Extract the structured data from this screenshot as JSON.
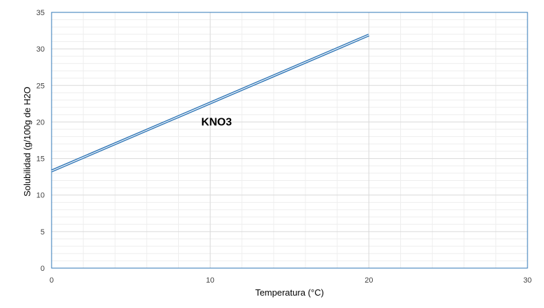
{
  "chart_data": {
    "type": "line",
    "title": "",
    "xlabel": "Temperatura (°C)",
    "ylabel": "Solubilidad (g/100g de H2O",
    "xlim": [
      0,
      30
    ],
    "ylim": [
      0,
      35
    ],
    "xticks": [
      0,
      10,
      20,
      30
    ],
    "yticks": [
      0,
      5,
      10,
      15,
      20,
      25,
      30,
      35
    ],
    "grid": true,
    "series": [
      {
        "x": [
          0,
          20
        ],
        "y": [
          13.3,
          31.9
        ],
        "color": "#2e75b6"
      }
    ],
    "annotations": [
      {
        "text": "KNO3",
        "x": 10.4,
        "y": 19.5
      }
    ],
    "colors": {
      "frame": "#2e75b6",
      "grid_major": "#d9d9d9",
      "grid_minor": "#eeeeee",
      "line": "#2e75b6"
    }
  }
}
